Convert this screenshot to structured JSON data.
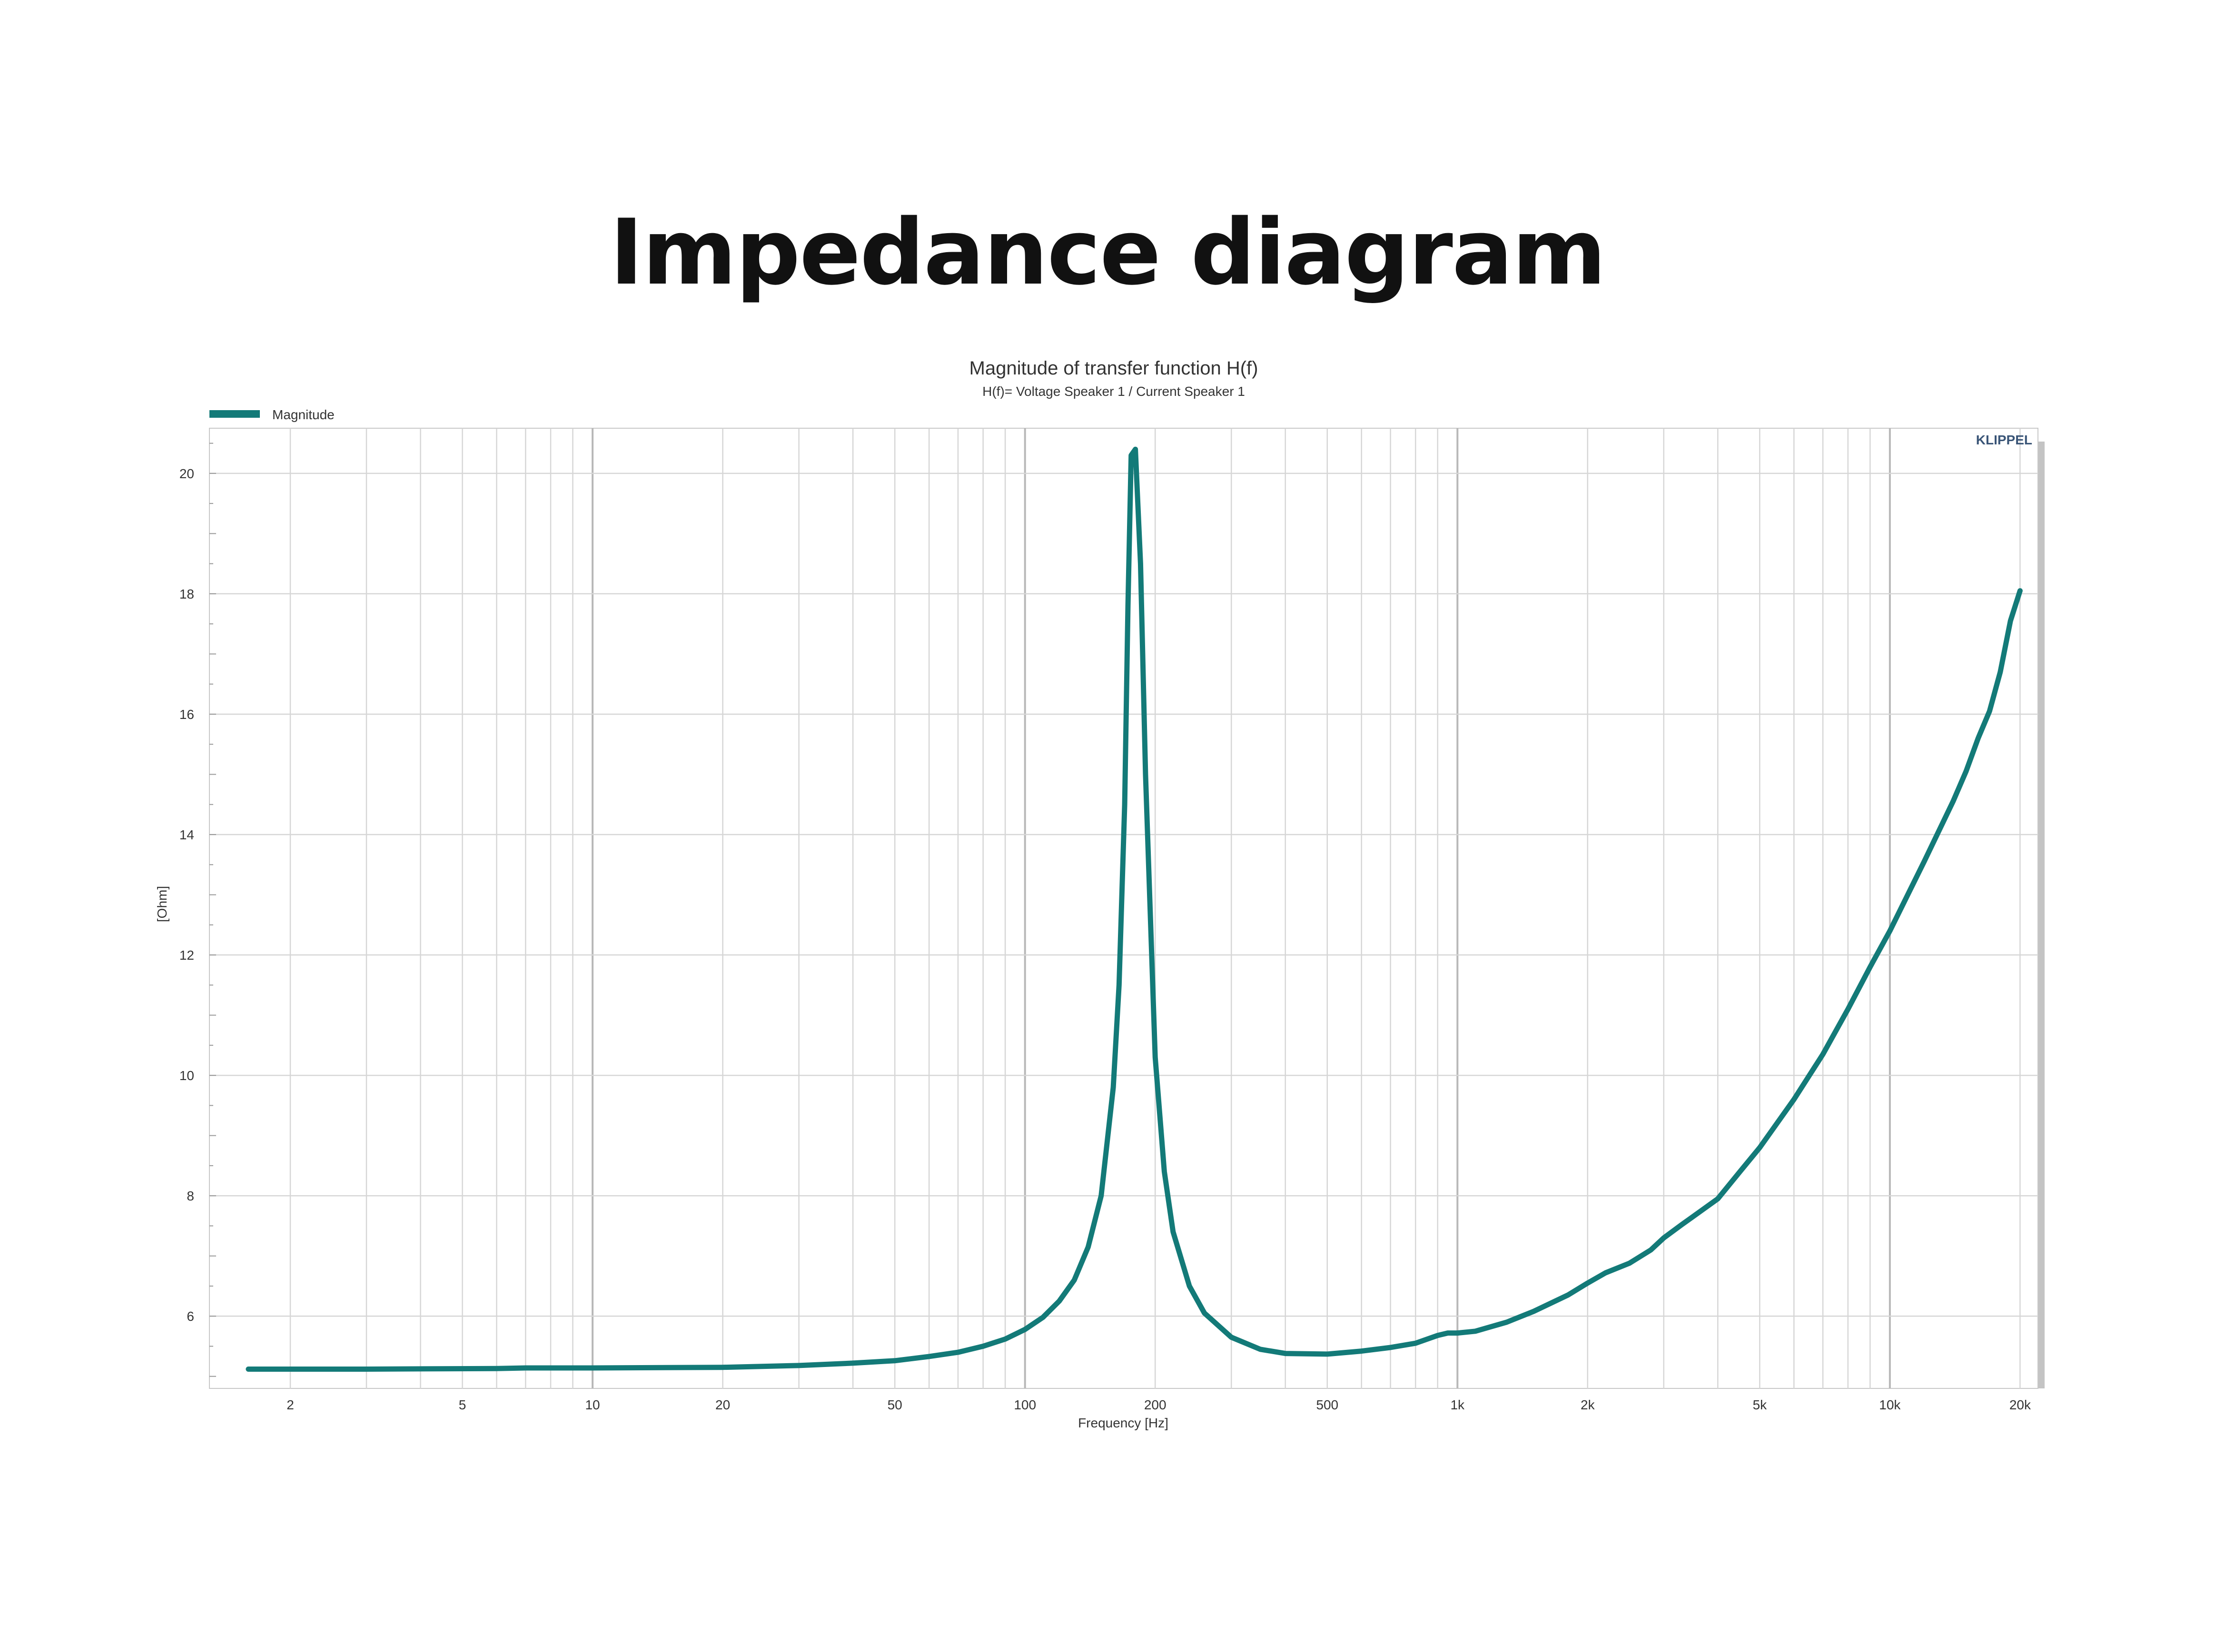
{
  "page": {
    "title": "Impedance diagram"
  },
  "colors": {
    "series": "#137a78",
    "grid_minor": "#d6d6d6",
    "grid_major": "#b8b8b8",
    "frame_shadow": "#c4c4c4",
    "text": "#333333",
    "brand": "#3a5577"
  },
  "chart_data": {
    "type": "line",
    "title": "Magnitude of transfer function H(f)",
    "subtitle": "H(f)= Voltage Speaker 1 / Current Speaker 1",
    "brand": "KLIPPEL",
    "xlabel": "Frequency [Hz]",
    "ylabel": "[Ohm]",
    "x_scale": "log",
    "xlim": [
      1.3,
      22000
    ],
    "ylim": [
      4.8,
      20.75
    ],
    "x_ticks": [
      2,
      5,
      10,
      20,
      50,
      100,
      200,
      500,
      1000,
      2000,
      5000,
      10000,
      20000
    ],
    "x_tick_labels": [
      "2",
      "5",
      "10",
      "20",
      "50",
      "100",
      "200",
      "500",
      "1k",
      "2k",
      "5k",
      "10k",
      "20k"
    ],
    "y_ticks": [
      6,
      8,
      10,
      12,
      14,
      16,
      18,
      20
    ],
    "y_tick_labels": [
      "6",
      "8",
      "10",
      "12",
      "14",
      "16",
      "18",
      "20"
    ],
    "grid": true,
    "legend": "top-left",
    "series": [
      {
        "name": "Magnitude",
        "x": [
          1.6,
          3,
          6,
          7,
          10,
          20,
          30,
          40,
          50,
          60,
          70,
          80,
          90,
          100,
          110,
          120,
          130,
          140,
          150,
          160,
          165,
          170,
          173,
          176,
          180,
          185,
          190,
          200,
          210,
          220,
          240,
          260,
          300,
          350,
          400,
          500,
          600,
          700,
          800,
          900,
          950,
          1000,
          1100,
          1300,
          1500,
          1800,
          2000,
          2200,
          2500,
          2800,
          3000,
          3300,
          3500,
          4000,
          4500,
          5000,
          6000,
          7000,
          8000,
          9000,
          10000,
          12000,
          14000,
          15000,
          16000,
          17000,
          18000,
          19000,
          20000
        ],
        "y": [
          5.12,
          5.12,
          5.13,
          5.14,
          5.14,
          5.15,
          5.18,
          5.22,
          5.26,
          5.33,
          5.4,
          5.5,
          5.62,
          5.78,
          5.98,
          6.25,
          6.6,
          7.15,
          8.0,
          9.8,
          11.5,
          14.5,
          17.8,
          20.3,
          20.4,
          18.5,
          15.0,
          10.3,
          8.4,
          7.4,
          6.5,
          6.05,
          5.65,
          5.45,
          5.38,
          5.37,
          5.42,
          5.48,
          5.55,
          5.68,
          5.72,
          5.72,
          5.75,
          5.9,
          6.08,
          6.35,
          6.55,
          6.72,
          6.88,
          7.1,
          7.3,
          7.52,
          7.65,
          7.95,
          8.4,
          8.8,
          9.6,
          10.35,
          11.1,
          11.8,
          12.4,
          13.55,
          14.55,
          15.05,
          15.6,
          16.05,
          16.7,
          17.55,
          18.05
        ]
      }
    ]
  }
}
